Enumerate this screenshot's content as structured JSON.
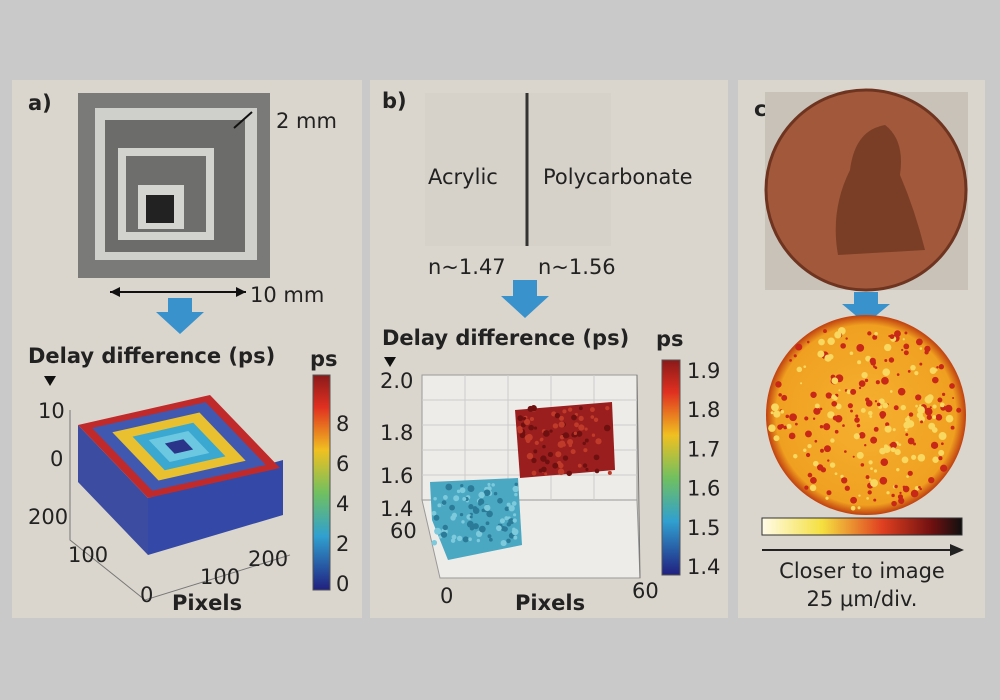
{
  "panels": [
    {
      "label": "a)",
      "sample": {
        "step_width": "2 mm",
        "width": "10 mm"
      },
      "plot": {
        "title": "Delay difference (ps)",
        "z_ticks": [
          "10",
          "0"
        ],
        "y_ticks": [
          "200",
          "100"
        ],
        "x_ticks": [
          "0",
          "100",
          "200"
        ],
        "x_label": "Pixels",
        "colorbar_unit": "ps",
        "colorbar_ticks": [
          "8",
          "6",
          "4",
          "2",
          "0"
        ]
      }
    },
    {
      "label": "b)",
      "materials": [
        "Acrylic",
        "Polycarbonate"
      ],
      "indices": [
        "n~1.47",
        "n~1.56"
      ],
      "plot": {
        "title": "Delay difference (ps)",
        "z_ticks": [
          "2.0",
          "1.8",
          "1.6",
          "1.4"
        ],
        "y_ticks": [
          "60"
        ],
        "x_ticks": [
          "0",
          "60"
        ],
        "x_label": "Pixels",
        "colorbar_unit": "ps",
        "colorbar_ticks": [
          "1.9",
          "1.8",
          "1.7",
          "1.6",
          "1.5",
          "1.4"
        ]
      }
    },
    {
      "label": "c)",
      "colorbar_caption": "Closer to image",
      "scale": "25 μm/div."
    }
  ]
}
